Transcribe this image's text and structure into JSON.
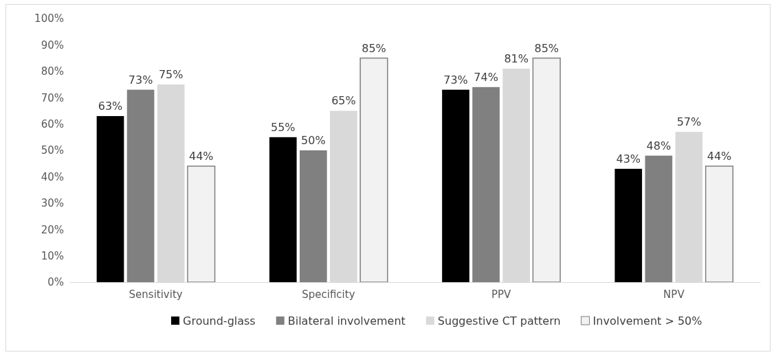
{
  "chart_data": {
    "type": "bar",
    "categories": [
      "Sensitivity",
      "Specificity",
      "PPV",
      "NPV"
    ],
    "series": [
      {
        "name": "Ground-glass",
        "color": "#000000",
        "values": [
          63,
          55,
          73,
          43
        ],
        "value_labels": [
          "63%",
          "55%",
          "73%",
          "43%"
        ]
      },
      {
        "name": "Bilateral involvement",
        "color": "#808080",
        "values": [
          73,
          50,
          74,
          48
        ],
        "value_labels": [
          "73%",
          "50%",
          "74%",
          "48%"
        ]
      },
      {
        "name": "Suggestive CT pattern",
        "color": "#d9d9d9",
        "values": [
          75,
          65,
          81,
          57
        ],
        "value_labels": [
          "75%",
          "65%",
          "81%",
          "57%"
        ]
      },
      {
        "name": "Involvement > 50%",
        "color": "#f2f2f2",
        "values": [
          44,
          85,
          85,
          44
        ],
        "value_labels": [
          "44%",
          "85%",
          "85%",
          "44%"
        ]
      }
    ],
    "ylim": [
      0,
      100
    ],
    "yticks": [
      {
        "value": 0,
        "label": "0%"
      },
      {
        "value": 10,
        "label": "10%"
      },
      {
        "value": 20,
        "label": "20%"
      },
      {
        "value": 30,
        "label": "30%"
      },
      {
        "value": 40,
        "label": "40%"
      },
      {
        "value": 50,
        "label": "50%"
      },
      {
        "value": 60,
        "label": "60%"
      },
      {
        "value": 70,
        "label": "70%"
      },
      {
        "value": 80,
        "label": "80%"
      },
      {
        "value": 90,
        "label": "90%"
      },
      {
        "value": 100,
        "label": "100%"
      }
    ],
    "legend": "bottom"
  }
}
